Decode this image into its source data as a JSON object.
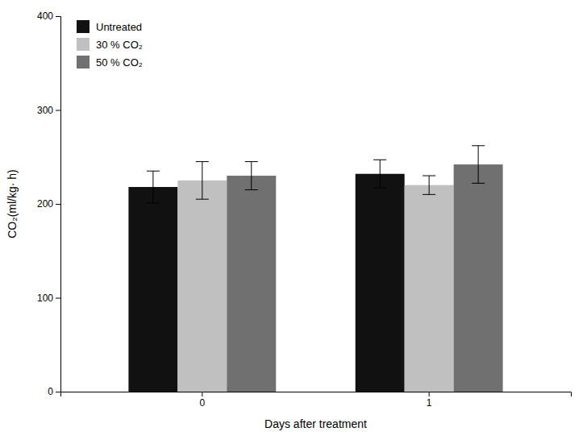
{
  "chart_data": {
    "type": "bar",
    "categories": [
      "0",
      "1"
    ],
    "series": [
      {
        "name": "Untreated",
        "color": "#111111",
        "values": [
          218,
          232
        ],
        "errors": [
          17,
          15
        ]
      },
      {
        "name": "30 % CO₂",
        "color": "#c0c0c0",
        "values": [
          225,
          220
        ],
        "errors": [
          20,
          10
        ]
      },
      {
        "name": "50 % CO₂",
        "color": "#707070",
        "values": [
          230,
          242
        ],
        "errors": [
          15,
          20
        ]
      }
    ],
    "xlabel": "Days after treatment",
    "ylabel": "CO₂(ml/kg· h)",
    "ylim": [
      0,
      400
    ],
    "yticks": [
      0,
      100,
      200,
      300,
      400
    ],
    "grid": false,
    "legend": "upper left"
  }
}
